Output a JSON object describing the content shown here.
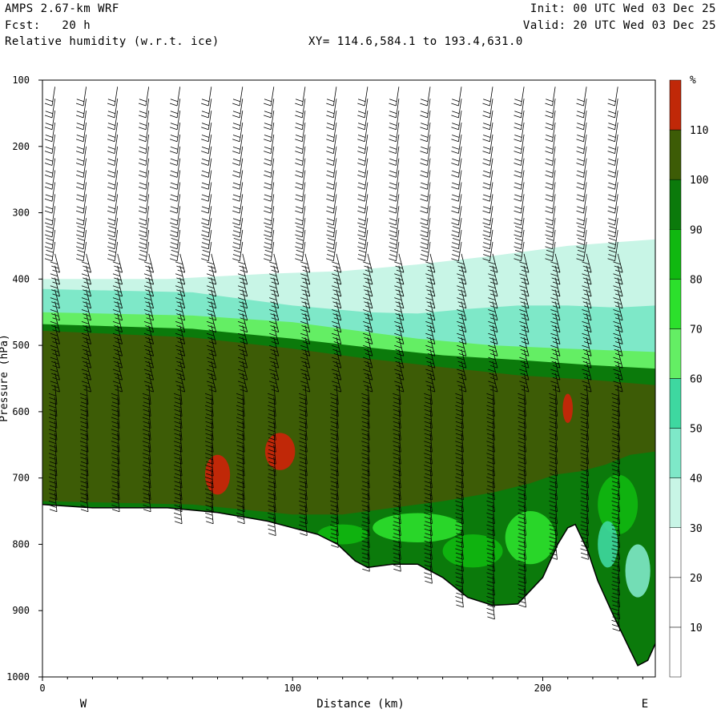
{
  "header": {
    "model": "AMPS 2.67-km WRF",
    "init": "Init: 00 UTC Wed 03 Dec 25",
    "fcst": "Fcst:   20 h",
    "valid": "Valid: 20 UTC Wed 03 Dec 25",
    "field": "Relative humidity (w.r.t. ice)",
    "xy": "XY= 114.6,584.1 to 193.4,631.0"
  },
  "chart_data": {
    "type": "cross-section",
    "xlabel": "Distance (km)",
    "ylabel": "Pressure (hPa)",
    "xlim": [
      0,
      245
    ],
    "ylim": [
      1000,
      100
    ],
    "x_ticks": [
      0,
      100,
      200
    ],
    "y_ticks": [
      100,
      200,
      300,
      400,
      500,
      600,
      700,
      800,
      900,
      1000
    ],
    "west_label": "W",
    "east_label": "E",
    "colorbar": {
      "unit": "%",
      "levels": [
        10,
        20,
        30,
        40,
        50,
        60,
        70,
        80,
        90,
        100,
        110
      ],
      "colors": [
        "#ffffff",
        "#ffffff",
        "#ffffff",
        "#c8f5e6",
        "#7ee8c8",
        "#3ed8a0",
        "#64ee64",
        "#2ce02c",
        "#10b810",
        "#0b7a0b",
        "#3d5c06",
        "#c02808"
      ]
    },
    "terrain_pressure": [
      {
        "x": 0,
        "p": 740
      },
      {
        "x": 20,
        "p": 745
      },
      {
        "x": 50,
        "p": 745
      },
      {
        "x": 70,
        "p": 752
      },
      {
        "x": 90,
        "p": 765
      },
      {
        "x": 100,
        "p": 775
      },
      {
        "x": 110,
        "p": 785
      },
      {
        "x": 118,
        "p": 800
      },
      {
        "x": 125,
        "p": 825
      },
      {
        "x": 130,
        "p": 835
      },
      {
        "x": 140,
        "p": 830
      },
      {
        "x": 150,
        "p": 830
      },
      {
        "x": 160,
        "p": 850
      },
      {
        "x": 170,
        "p": 880
      },
      {
        "x": 180,
        "p": 892
      },
      {
        "x": 190,
        "p": 890
      },
      {
        "x": 200,
        "p": 850
      },
      {
        "x": 206,
        "p": 800
      },
      {
        "x": 210,
        "p": 775
      },
      {
        "x": 213,
        "p": 770
      },
      {
        "x": 218,
        "p": 810
      },
      {
        "x": 222,
        "p": 855
      },
      {
        "x": 228,
        "p": 905
      },
      {
        "x": 235,
        "p": 960
      },
      {
        "x": 238,
        "p": 983
      },
      {
        "x": 242,
        "p": 975
      },
      {
        "x": 245,
        "p": 950
      }
    ],
    "contour_pressure": {
      "rh_30": [
        {
          "x": 0,
          "p": 400
        },
        {
          "x": 50,
          "p": 400
        },
        {
          "x": 90,
          "p": 392
        },
        {
          "x": 120,
          "p": 388
        },
        {
          "x": 150,
          "p": 378
        },
        {
          "x": 180,
          "p": 365
        },
        {
          "x": 210,
          "p": 350
        },
        {
          "x": 245,
          "p": 340
        }
      ],
      "rh_40": [
        {
          "x": 0,
          "p": 415
        },
        {
          "x": 60,
          "p": 420
        },
        {
          "x": 100,
          "p": 440
        },
        {
          "x": 130,
          "p": 450
        },
        {
          "x": 150,
          "p": 452
        },
        {
          "x": 170,
          "p": 445
        },
        {
          "x": 190,
          "p": 440
        },
        {
          "x": 210,
          "p": 440
        },
        {
          "x": 230,
          "p": 443
        },
        {
          "x": 245,
          "p": 440
        }
      ],
      "rh_60": [
        {
          "x": 0,
          "p": 450
        },
        {
          "x": 60,
          "p": 455
        },
        {
          "x": 100,
          "p": 465
        },
        {
          "x": 130,
          "p": 480
        },
        {
          "x": 150,
          "p": 490
        },
        {
          "x": 180,
          "p": 500
        },
        {
          "x": 210,
          "p": 505
        },
        {
          "x": 245,
          "p": 510
        }
      ],
      "rh_90": [
        {
          "x": 0,
          "p": 468
        },
        {
          "x": 60,
          "p": 475
        },
        {
          "x": 100,
          "p": 490
        },
        {
          "x": 130,
          "p": 503
        },
        {
          "x": 160,
          "p": 515
        },
        {
          "x": 190,
          "p": 522
        },
        {
          "x": 220,
          "p": 530
        },
        {
          "x": 245,
          "p": 535
        }
      ],
      "rh_100_top": [
        {
          "x": 0,
          "p": 478
        },
        {
          "x": 60,
          "p": 488
        },
        {
          "x": 100,
          "p": 505
        },
        {
          "x": 130,
          "p": 520
        },
        {
          "x": 160,
          "p": 533
        },
        {
          "x": 190,
          "p": 545
        },
        {
          "x": 220,
          "p": 552
        },
        {
          "x": 245,
          "p": 560
        }
      ],
      "rh_100_bottom": [
        {
          "x": 0,
          "p": 735
        },
        {
          "x": 60,
          "p": 740
        },
        {
          "x": 100,
          "p": 755
        },
        {
          "x": 120,
          "p": 755
        },
        {
          "x": 140,
          "p": 745
        },
        {
          "x": 160,
          "p": 735
        },
        {
          "x": 180,
          "p": 722
        },
        {
          "x": 195,
          "p": 708
        },
        {
          "x": 205,
          "p": 695
        },
        {
          "x": 215,
          "p": 690
        },
        {
          "x": 225,
          "p": 680
        },
        {
          "x": 235,
          "p": 665
        },
        {
          "x": 245,
          "p": 660
        }
      ]
    },
    "rh_over_110_regions": [
      {
        "x": 70,
        "p": 695,
        "rx": 5,
        "rp": 30
      },
      {
        "x": 95,
        "p": 660,
        "rx": 6,
        "rp": 28
      },
      {
        "x": 210,
        "p": 595,
        "rx": 2,
        "rp": 22
      }
    ]
  }
}
